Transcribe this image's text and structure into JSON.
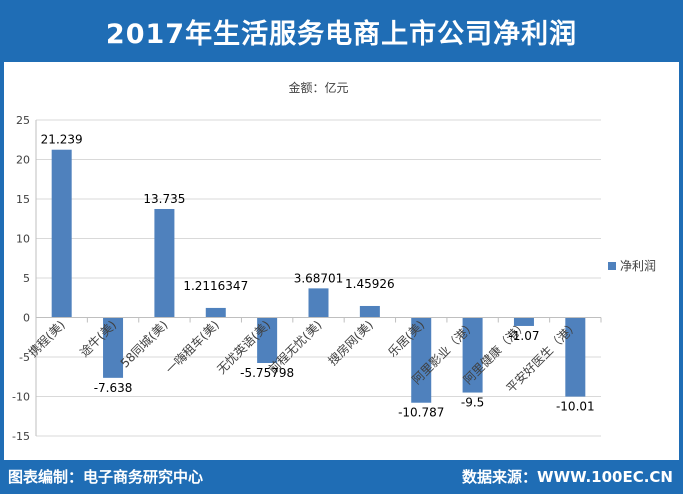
{
  "title": "2017年生活服务电商上市公司净利润",
  "footer": {
    "left": "图表编制：电子商务研究中心",
    "right": "数据来源：WWW.100EC.CN"
  },
  "colors": {
    "frame": "#1f6db5",
    "bar": "#4f81bd"
  },
  "chart_data": {
    "type": "bar",
    "subtitle": "金额：亿元",
    "categories": [
      "携程(美)",
      "途牛(美)",
      "58同城(美)",
      "一嗨租车(美)",
      "无忧英语(美)",
      "前程无忧(美)",
      "搜房网(美)",
      "乐居(美)",
      "阿里影业（港）",
      "阿里健康（港）",
      "平安好医生（港）"
    ],
    "series": [
      {
        "name": "净利润",
        "values": [
          21.239,
          -7.638,
          13.735,
          1.2116347,
          -5.75798,
          3.68701,
          1.45926,
          -10.787,
          -9.5,
          -1.07,
          -10.01
        ],
        "labels": [
          "21.239",
          "-7.638",
          "13.735",
          "1.2116347",
          "-5.75798",
          "3.68701",
          "1.45926",
          "-10.787",
          "-9.5",
          "-1.07",
          "-10.01"
        ]
      }
    ],
    "ylim": [
      -15,
      25
    ],
    "yticks": [
      -15,
      -10,
      -5,
      0,
      5,
      10,
      15,
      20,
      25
    ],
    "legend_position": "right",
    "grid": true
  }
}
